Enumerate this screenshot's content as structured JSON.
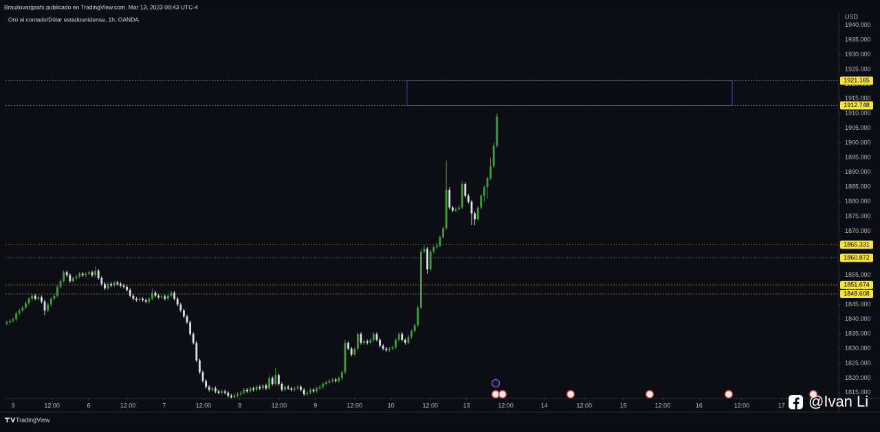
{
  "header": "Brauliovargasfx publicado en TradingView.com, Mar 13, 2023 09:43 UTC-4",
  "brand": "TradingView",
  "watermark": "@Ivan Li",
  "chart_data": {
    "type": "candlestick",
    "title": "Oro al contado/Dólar estadounidense, 1h, OANDA",
    "y_unit": "USD",
    "up_color": "#3f9c3f",
    "down_color": "#dcdde2",
    "level_color": "#6e6a3c",
    "level_label_color": "#f6e53f",
    "zone_color": "#4a3fb0",
    "xlim": [
      -0.4,
      263.1
    ],
    "ylim": [
      1813.1,
      1944.4
    ],
    "xticks": [
      {
        "value": 2.0,
        "label": "3"
      },
      {
        "value": 14.3,
        "label": "12:00"
      },
      {
        "value": 25.9,
        "label": "6"
      },
      {
        "value": 38.3,
        "label": "12:00"
      },
      {
        "value": 49.8,
        "label": "7"
      },
      {
        "value": 62.2,
        "label": "12:00"
      },
      {
        "value": 73.7,
        "label": "8"
      },
      {
        "value": 86.1,
        "label": "12:00"
      },
      {
        "value": 97.6,
        "label": "9"
      },
      {
        "value": 110.0,
        "label": "12:00"
      },
      {
        "value": 121.5,
        "label": "10"
      },
      {
        "value": 133.9,
        "label": "12:00"
      },
      {
        "value": 145.4,
        "label": "13"
      },
      {
        "value": 157.8,
        "label": "12:00"
      },
      {
        "value": 170.0,
        "label": "14"
      },
      {
        "value": 182.6,
        "label": "12:00"
      },
      {
        "value": 195.0,
        "label": "15"
      },
      {
        "value": 207.4,
        "label": "12:00"
      },
      {
        "value": 218.9,
        "label": "16"
      },
      {
        "value": 232.4,
        "label": "12:00"
      },
      {
        "value": 245.0,
        "label": "17"
      }
    ],
    "yticks": [
      {
        "value": 1815,
        "label": "1815.000"
      },
      {
        "value": 1820,
        "label": "1820.000"
      },
      {
        "value": 1825,
        "label": "1825.000"
      },
      {
        "value": 1830,
        "label": "1830.000"
      },
      {
        "value": 1835,
        "label": "1835.000"
      },
      {
        "value": 1840,
        "label": "1840.000"
      },
      {
        "value": 1845,
        "label": "1845.000"
      },
      {
        "value": 1850,
        "label": "1850.000"
      },
      {
        "value": 1855,
        "label": "1855.000"
      },
      {
        "value": 1860,
        "label": "1860.000"
      },
      {
        "value": 1865,
        "label": "1865.000"
      },
      {
        "value": 1870,
        "label": "1870.000"
      },
      {
        "value": 1875,
        "label": "1875.000"
      },
      {
        "value": 1880,
        "label": "1880.000"
      },
      {
        "value": 1885,
        "label": "1885.000"
      },
      {
        "value": 1890,
        "label": "1890.000"
      },
      {
        "value": 1895,
        "label": "1895.000"
      },
      {
        "value": 1900,
        "label": "1900.000"
      },
      {
        "value": 1905,
        "label": "1905.000"
      },
      {
        "value": 1910,
        "label": "1910.000"
      },
      {
        "value": 1915,
        "label": "1915.000"
      },
      {
        "value": 1920,
        "label": "1920.000"
      },
      {
        "value": 1925,
        "label": "1925.000"
      },
      {
        "value": 1930,
        "label": "1930.000"
      },
      {
        "value": 1935,
        "label": "1935.000"
      },
      {
        "value": 1940,
        "label": "1940.000"
      }
    ],
    "levels": [
      1921.165,
      1912.748,
      1865.331,
      1860.872,
      1851.674,
      1848.608
    ],
    "candles": [
      [
        1838.5,
        1839.6,
        1837.9,
        1839
      ],
      [
        1839,
        1840.1,
        1838.4,
        1839.5
      ],
      [
        1839.5,
        1840.6,
        1838.9,
        1840
      ],
      [
        1840,
        1842.6,
        1839.4,
        1842
      ],
      [
        1842,
        1843.6,
        1841.4,
        1843
      ],
      [
        1843,
        1844.6,
        1842.4,
        1844
      ],
      [
        1844,
        1846.1,
        1843.4,
        1845.5
      ],
      [
        1845.5,
        1847.6,
        1844.9,
        1847
      ],
      [
        1847,
        1848.6,
        1846.4,
        1848
      ],
      [
        1848,
        1848.6,
        1846.4,
        1847
      ],
      [
        1847,
        1848.1,
        1846.4,
        1847.5
      ],
      [
        1847.5,
        1848.1,
        1845.4,
        1846
      ],
      [
        1846,
        1846.6,
        1841.4,
        1843
      ],
      [
        1843,
        1845.6,
        1842.4,
        1845
      ],
      [
        1845,
        1847.6,
        1844.4,
        1847
      ],
      [
        1847,
        1848.6,
        1846.4,
        1848
      ],
      [
        1848,
        1851.6,
        1847.4,
        1851
      ],
      [
        1851,
        1853.6,
        1850.4,
        1853
      ],
      [
        1853,
        1856.6,
        1852.4,
        1856
      ],
      [
        1856,
        1856.6,
        1854.4,
        1855
      ],
      [
        1855,
        1855.6,
        1852.4,
        1853
      ],
      [
        1853,
        1854.6,
        1852.4,
        1854
      ],
      [
        1854,
        1855.1,
        1853.4,
        1854.5
      ],
      [
        1854.5,
        1856.1,
        1853.9,
        1855.5
      ],
      [
        1855.5,
        1856.1,
        1854.4,
        1855
      ],
      [
        1855,
        1856.1,
        1854.4,
        1855.5
      ],
      [
        1855.5,
        1856.6,
        1854.9,
        1856
      ],
      [
        1856,
        1856.6,
        1854.4,
        1855
      ],
      [
        1855,
        1858,
        1854.4,
        1856.5
      ],
      [
        1856.5,
        1857.1,
        1853.4,
        1854
      ],
      [
        1854,
        1854.6,
        1851.4,
        1852
      ],
      [
        1852,
        1852.6,
        1849.9,
        1850.5
      ],
      [
        1850.5,
        1852.6,
        1849.9,
        1852
      ],
      [
        1852,
        1852.6,
        1850.9,
        1851.5
      ],
      [
        1851.5,
        1853.1,
        1850.9,
        1852.5
      ],
      [
        1852.5,
        1853.1,
        1851.4,
        1852
      ],
      [
        1852,
        1852.6,
        1850.9,
        1851.5
      ],
      [
        1851.5,
        1852.1,
        1850.4,
        1851
      ],
      [
        1851,
        1851.6,
        1849.4,
        1850
      ],
      [
        1850,
        1850.6,
        1847.4,
        1848
      ],
      [
        1848,
        1848.6,
        1846.4,
        1847
      ],
      [
        1847,
        1847.6,
        1845.9,
        1846.5
      ],
      [
        1846.5,
        1847.6,
        1845.9,
        1847
      ],
      [
        1847,
        1847.6,
        1845.9,
        1846.5
      ],
      [
        1846.5,
        1847.1,
        1845.4,
        1846
      ],
      [
        1846,
        1847.6,
        1845.4,
        1847
      ],
      [
        1847,
        1850.5,
        1846.4,
        1849
      ],
      [
        1849,
        1849.6,
        1847.4,
        1848
      ],
      [
        1848,
        1848.6,
        1846.9,
        1847.5
      ],
      [
        1847.5,
        1848.4,
        1846.9,
        1847.8
      ],
      [
        1847.8,
        1848.4,
        1846.4,
        1847
      ],
      [
        1847,
        1848.6,
        1846.4,
        1848
      ],
      [
        1848,
        1849.6,
        1847.4,
        1849
      ],
      [
        1849,
        1849.6,
        1846.4,
        1847
      ],
      [
        1847,
        1847.6,
        1844.4,
        1845
      ],
      [
        1845,
        1845.6,
        1842.4,
        1843
      ],
      [
        1843,
        1843.6,
        1840.4,
        1841
      ],
      [
        1841,
        1841.6,
        1838.4,
        1839
      ],
      [
        1839,
        1839.6,
        1834.4,
        1835
      ],
      [
        1835,
        1835.6,
        1831.4,
        1832
      ],
      [
        1832,
        1832.6,
        1825.4,
        1826
      ],
      [
        1826,
        1826.6,
        1821.4,
        1822
      ],
      [
        1822,
        1822.6,
        1818.4,
        1819
      ],
      [
        1819,
        1819.6,
        1816.4,
        1817
      ],
      [
        1817,
        1817.6,
        1815.4,
        1816
      ],
      [
        1816,
        1817.1,
        1815.4,
        1816.5
      ],
      [
        1816.5,
        1817.1,
        1814.9,
        1815.5
      ],
      [
        1815.5,
        1816.1,
        1814.4,
        1815
      ],
      [
        1815,
        1816.1,
        1814.4,
        1815.5
      ],
      [
        1815.5,
        1816.1,
        1814.4,
        1815
      ],
      [
        1815,
        1815.6,
        1813.4,
        1814
      ],
      [
        1814,
        1814.6,
        1813.1,
        1813.5
      ],
      [
        1813.5,
        1814.6,
        1813.1,
        1814
      ],
      [
        1814,
        1815.1,
        1813.4,
        1814.5
      ],
      [
        1814.5,
        1815.6,
        1813.9,
        1815
      ],
      [
        1815,
        1816.6,
        1814.4,
        1816
      ],
      [
        1816,
        1816.6,
        1814.9,
        1815.5
      ],
      [
        1815.5,
        1817.1,
        1814.9,
        1816.5
      ],
      [
        1816.5,
        1817.1,
        1815.4,
        1816
      ],
      [
        1816,
        1817.6,
        1815.4,
        1817
      ],
      [
        1817,
        1817.6,
        1815.9,
        1816.5
      ],
      [
        1816.5,
        1818.1,
        1815.9,
        1817.5
      ],
      [
        1817.5,
        1818.1,
        1815.9,
        1816.5
      ],
      [
        1816.5,
        1821,
        1815.9,
        1820
      ],
      [
        1820,
        1820.6,
        1817.4,
        1818
      ],
      [
        1818,
        1823.5,
        1817.4,
        1821
      ],
      [
        1821,
        1821.6,
        1817.4,
        1818
      ],
      [
        1818,
        1818.6,
        1815.4,
        1816
      ],
      [
        1816,
        1817.6,
        1815.4,
        1817
      ],
      [
        1817,
        1817.6,
        1815.9,
        1816.5
      ],
      [
        1816.5,
        1817.1,
        1815.4,
        1816
      ],
      [
        1816,
        1817.1,
        1815.4,
        1816.5
      ],
      [
        1816.5,
        1817.6,
        1815.9,
        1817
      ],
      [
        1817,
        1817.6,
        1815.4,
        1816
      ],
      [
        1816,
        1816.6,
        1813.9,
        1814.5
      ],
      [
        1814.5,
        1815.6,
        1813.9,
        1815
      ],
      [
        1815,
        1816.6,
        1814.4,
        1816
      ],
      [
        1816,
        1816.6,
        1814.9,
        1815.5
      ],
      [
        1815.5,
        1817.1,
        1814.9,
        1816.5
      ],
      [
        1816.5,
        1817.6,
        1815.9,
        1817
      ],
      [
        1817,
        1818.6,
        1816.4,
        1818
      ],
      [
        1818,
        1819.1,
        1817.4,
        1818.5
      ],
      [
        1818.5,
        1819.6,
        1817.9,
        1819
      ],
      [
        1819,
        1820.1,
        1818.4,
        1819.5
      ],
      [
        1819.5,
        1820.1,
        1818.4,
        1819
      ],
      [
        1819,
        1820.6,
        1818.4,
        1820
      ],
      [
        1820,
        1822.6,
        1819.4,
        1822
      ],
      [
        1822,
        1833,
        1821.4,
        1832
      ],
      [
        1832,
        1832.6,
        1829.4,
        1830
      ],
      [
        1830,
        1830.6,
        1827.4,
        1828
      ],
      [
        1828,
        1830.6,
        1827.4,
        1830
      ],
      [
        1830,
        1835.6,
        1829.4,
        1835
      ],
      [
        1835,
        1835.6,
        1831.4,
        1832
      ],
      [
        1832,
        1833.1,
        1831.4,
        1832.5
      ],
      [
        1832.5,
        1833.1,
        1831.4,
        1832
      ],
      [
        1832,
        1833.6,
        1831.4,
        1833
      ],
      [
        1833,
        1835.6,
        1832.4,
        1835
      ],
      [
        1835,
        1835.6,
        1832.4,
        1833
      ],
      [
        1833,
        1833.6,
        1830.4,
        1831
      ],
      [
        1831,
        1831.6,
        1829.4,
        1830
      ],
      [
        1830,
        1830.6,
        1828.9,
        1829.5
      ],
      [
        1829.5,
        1830.6,
        1828.9,
        1830
      ],
      [
        1830,
        1831.1,
        1829.4,
        1830.5
      ],
      [
        1830.5,
        1833.6,
        1829.9,
        1833
      ],
      [
        1833,
        1835.6,
        1832.4,
        1835
      ],
      [
        1835,
        1835.6,
        1832.4,
        1833
      ],
      [
        1833,
        1833.6,
        1831.4,
        1832
      ],
      [
        1832,
        1834.6,
        1831.4,
        1834
      ],
      [
        1834,
        1836.6,
        1833.4,
        1836
      ],
      [
        1836,
        1838.6,
        1835.4,
        1838
      ],
      [
        1838,
        1844.6,
        1837.4,
        1844
      ],
      [
        1844,
        1864,
        1843.4,
        1863
      ],
      [
        1863,
        1865,
        1862.4,
        1864
      ],
      [
        1864,
        1864.6,
        1855.5,
        1857
      ],
      [
        1857,
        1863.6,
        1856.4,
        1863
      ],
      [
        1863,
        1865.1,
        1862.4,
        1864.5
      ],
      [
        1864.5,
        1866,
        1863.9,
        1865
      ],
      [
        1865,
        1868.6,
        1864.4,
        1868
      ],
      [
        1868,
        1871.6,
        1867.4,
        1871
      ],
      [
        1871,
        1894,
        1870.4,
        1884
      ],
      [
        1884,
        1885,
        1877.4,
        1878
      ],
      [
        1878,
        1878.6,
        1876.4,
        1877
      ],
      [
        1877,
        1878.1,
        1876.4,
        1877.5
      ],
      [
        1877.5,
        1878.6,
        1876.9,
        1878
      ],
      [
        1878,
        1887,
        1877.4,
        1886
      ],
      [
        1886,
        1886.6,
        1881.4,
        1882
      ],
      [
        1882,
        1882.6,
        1879.4,
        1880
      ],
      [
        1880,
        1880.6,
        1872,
        1876
      ],
      [
        1876,
        1876.6,
        1872,
        1874
      ],
      [
        1874,
        1878.6,
        1873.4,
        1878
      ],
      [
        1878,
        1882.6,
        1877.4,
        1882
      ],
      [
        1882,
        1885.6,
        1880,
        1885
      ],
      [
        1885,
        1888.6,
        1881,
        1888
      ],
      [
        1888,
        1895,
        1887.4,
        1892
      ],
      [
        1892,
        1900,
        1891.4,
        1899
      ],
      [
        1899,
        1910,
        1898.4,
        1909
      ]
    ]
  }
}
